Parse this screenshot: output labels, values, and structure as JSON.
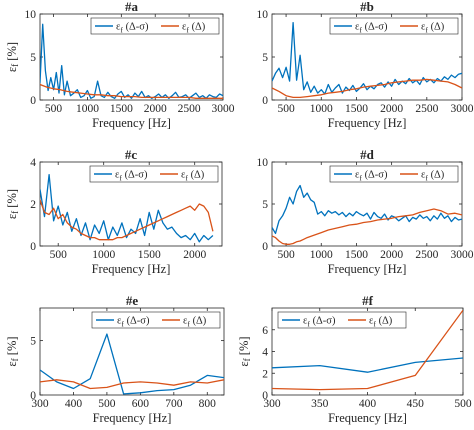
{
  "figure": {
    "series_colors": [
      "#0072BD",
      "#D95319"
    ]
  },
  "chart_data": [
    {
      "id": "a",
      "type": "line",
      "title": "#a",
      "xlabel": "Frequency [Hz]",
      "ylabel": "ε_f [%]",
      "xlim": [
        300,
        3000
      ],
      "ylim": [
        0,
        10
      ],
      "xticks": [
        500,
        1000,
        1500,
        2000,
        2500,
        3000
      ],
      "yticks": [
        0,
        5,
        10
      ],
      "legend": "top-right",
      "series": [
        {
          "name": "ε_f (Δ-σ)",
          "color": "#0072BD",
          "x": [
            300,
            340,
            380,
            420,
            460,
            500,
            540,
            580,
            620,
            660,
            700,
            750,
            800,
            850,
            900,
            950,
            1000,
            1050,
            1100,
            1150,
            1200,
            1250,
            1300,
            1350,
            1400,
            1450,
            1500,
            1550,
            1600,
            1650,
            1700,
            1750,
            1800,
            1850,
            1900,
            1950,
            2000,
            2050,
            2100,
            2150,
            2200,
            2250,
            2300,
            2350,
            2400,
            2450,
            2500,
            2550,
            2600,
            2650,
            2700,
            2750,
            2800,
            2850,
            2900,
            2950,
            3000
          ],
          "y": [
            2.0,
            8.8,
            3.4,
            1.1,
            2.6,
            1.2,
            3.2,
            0.8,
            4.0,
            0.6,
            2.2,
            0.5,
            0.8,
            1.2,
            0.3,
            0.5,
            1.1,
            0.2,
            0.4,
            2.2,
            0.5,
            0.3,
            0.9,
            0.4,
            0.2,
            0.7,
            1.0,
            0.3,
            0.6,
            0.2,
            0.8,
            0.4,
            1.0,
            0.3,
            0.5,
            0.2,
            0.4,
            0.7,
            0.3,
            0.6,
            0.2,
            0.5,
            0.9,
            0.3,
            0.4,
            0.6,
            0.2,
            0.5,
            0.8,
            0.3,
            0.5,
            0.2,
            0.6,
            0.4,
            0.3,
            0.7,
            0.5
          ]
        },
        {
          "name": "ε_f (Δ)",
          "color": "#D95319",
          "x": [
            300,
            400,
            500,
            600,
            700,
            800,
            900,
            1000,
            1100,
            1200,
            1300,
            1400,
            1500,
            1600,
            1700,
            1800,
            1900,
            2000,
            2100,
            2200,
            2300,
            2400,
            2500,
            2600,
            2700,
            2800,
            2900,
            3000
          ],
          "y": [
            1.8,
            1.5,
            1.3,
            1.2,
            1.0,
            0.9,
            0.8,
            0.7,
            0.6,
            0.6,
            0.5,
            0.5,
            0.4,
            0.4,
            0.4,
            0.3,
            0.3,
            0.3,
            0.3,
            0.3,
            0.3,
            0.3,
            0.3,
            0.2,
            0.2,
            0.2,
            0.2,
            0.2
          ]
        }
      ]
    },
    {
      "id": "b",
      "type": "line",
      "title": "#b",
      "xlabel": "Frequency [Hz]",
      "ylabel": "",
      "xlim": [
        300,
        3000
      ],
      "ylim": [
        0,
        10
      ],
      "xticks": [
        500,
        1000,
        1500,
        2000,
        2500,
        3000
      ],
      "yticks": [
        0,
        5,
        10
      ],
      "legend": "top-right",
      "series": [
        {
          "name": "ε_f (Δ-σ)",
          "color": "#0072BD",
          "x": [
            300,
            350,
            400,
            450,
            500,
            550,
            600,
            650,
            700,
            750,
            800,
            850,
            900,
            950,
            1000,
            1050,
            1100,
            1150,
            1200,
            1250,
            1300,
            1350,
            1400,
            1450,
            1500,
            1550,
            1600,
            1650,
            1700,
            1750,
            1800,
            1850,
            1900,
            1950,
            2000,
            2050,
            2100,
            2150,
            2200,
            2250,
            2300,
            2350,
            2400,
            2450,
            2500,
            2550,
            2600,
            2650,
            2700,
            2750,
            2800,
            2850,
            2900,
            2950,
            3000
          ],
          "y": [
            2.2,
            3.1,
            3.7,
            2.6,
            3.8,
            2.2,
            9.0,
            2.3,
            5.2,
            1.2,
            2.1,
            0.9,
            1.6,
            0.8,
            1.2,
            0.7,
            1.8,
            0.9,
            1.4,
            1.8,
            0.8,
            1.5,
            1.1,
            1.7,
            1.0,
            1.4,
            1.9,
            1.2,
            1.6,
            1.3,
            1.8,
            2.0,
            1.5,
            2.1,
            1.6,
            2.4,
            1.8,
            2.2,
            1.9,
            2.5,
            2.0,
            2.3,
            1.8,
            2.6,
            2.1,
            2.4,
            2.0,
            2.5,
            2.2,
            2.7,
            2.4,
            2.9,
            2.6,
            3.0,
            3.1
          ]
        },
        {
          "name": "ε_f (Δ)",
          "color": "#D95319",
          "x": [
            300,
            400,
            500,
            600,
            700,
            800,
            900,
            1000,
            1100,
            1200,
            1300,
            1400,
            1500,
            1600,
            1700,
            1800,
            1900,
            2000,
            2100,
            2200,
            2300,
            2400,
            2500,
            2600,
            2700,
            2800,
            2900,
            3000
          ],
          "y": [
            1.4,
            1.0,
            0.5,
            0.3,
            0.3,
            0.4,
            0.5,
            0.6,
            0.8,
            0.9,
            1.0,
            1.2,
            1.3,
            1.5,
            1.6,
            1.7,
            1.8,
            2.0,
            2.1,
            2.2,
            2.3,
            2.3,
            2.4,
            2.3,
            2.2,
            2.1,
            1.8,
            1.4
          ]
        }
      ]
    },
    {
      "id": "c",
      "type": "line",
      "title": "#c",
      "xlabel": "Frequency [Hz]",
      "ylabel": "ε_f [%]",
      "xlim": [
        300,
        2300
      ],
      "ylim": [
        0,
        4
      ],
      "xticks": [
        500,
        1000,
        1500,
        2000
      ],
      "yticks": [
        0,
        2,
        4
      ],
      "legend": "top-right",
      "series": [
        {
          "name": "ε_f (Δ-σ)",
          "color": "#0072BD",
          "x": [
            300,
            350,
            400,
            450,
            500,
            550,
            600,
            650,
            700,
            750,
            800,
            850,
            900,
            950,
            1000,
            1050,
            1100,
            1150,
            1200,
            1250,
            1300,
            1350,
            1400,
            1450,
            1500,
            1550,
            1600,
            1650,
            1700,
            1750,
            1800,
            1850,
            1900,
            1950,
            2000,
            2050,
            2100,
            2150,
            2200
          ],
          "y": [
            2.7,
            1.4,
            3.4,
            1.2,
            1.9,
            1.0,
            1.6,
            0.7,
            1.3,
            0.5,
            1.1,
            0.3,
            1.0,
            0.6,
            1.2,
            0.3,
            0.9,
            0.5,
            1.1,
            0.4,
            0.8,
            0.6,
            1.3,
            0.5,
            1.6,
            0.8,
            1.7,
            1.1,
            0.8,
            0.9,
            0.6,
            0.4,
            0.5,
            0.3,
            0.6,
            0.2,
            0.5,
            0.3,
            0.5
          ]
        },
        {
          "name": "ε_f (Δ)",
          "color": "#D95319",
          "x": [
            300,
            350,
            400,
            450,
            500,
            550,
            600,
            650,
            700,
            750,
            800,
            850,
            900,
            950,
            1000,
            1050,
            1100,
            1150,
            1200,
            1250,
            1300,
            1350,
            1400,
            1450,
            1500,
            1550,
            1600,
            1650,
            1700,
            1750,
            1800,
            1850,
            1900,
            1950,
            2000,
            2050,
            2100,
            2150,
            2200
          ],
          "y": [
            2.2,
            1.6,
            1.5,
            1.8,
            1.3,
            1.5,
            1.1,
            0.9,
            0.8,
            0.6,
            0.5,
            0.4,
            0.4,
            0.3,
            0.3,
            0.3,
            0.3,
            0.4,
            0.4,
            0.5,
            0.6,
            0.7,
            0.8,
            0.9,
            1.0,
            1.1,
            1.2,
            1.3,
            1.4,
            1.5,
            1.6,
            1.7,
            1.8,
            1.9,
            1.7,
            2.0,
            1.9,
            1.6,
            0.7
          ]
        }
      ]
    },
    {
      "id": "d",
      "type": "line",
      "title": "#d",
      "xlabel": "Frequency [Hz]",
      "ylabel": "",
      "xlim": [
        300,
        3000
      ],
      "ylim": [
        0,
        10
      ],
      "xticks": [
        500,
        1000,
        1500,
        2000,
        2500,
        3000
      ],
      "yticks": [
        0,
        5,
        10
      ],
      "legend": "top-right",
      "series": [
        {
          "name": "ε_f (Δ-σ)",
          "color": "#0072BD",
          "x": [
            300,
            350,
            400,
            450,
            500,
            550,
            600,
            650,
            700,
            750,
            800,
            850,
            900,
            950,
            1000,
            1050,
            1100,
            1150,
            1200,
            1250,
            1300,
            1350,
            1400,
            1450,
            1500,
            1550,
            1600,
            1650,
            1700,
            1750,
            1800,
            1850,
            1900,
            1950,
            2000,
            2050,
            2100,
            2150,
            2200,
            2250,
            2300,
            2350,
            2400,
            2450,
            2500,
            2550,
            2600,
            2650,
            2700,
            2750,
            2800,
            2850,
            2900,
            2950,
            3000
          ],
          "y": [
            2.2,
            1.5,
            3.0,
            3.6,
            4.5,
            5.8,
            5.0,
            6.5,
            7.2,
            5.8,
            6.3,
            5.5,
            5.2,
            3.8,
            4.1,
            3.6,
            4.2,
            3.9,
            4.1,
            3.7,
            4.0,
            3.5,
            3.9,
            3.6,
            4.1,
            3.8,
            3.6,
            3.9,
            3.2,
            4.0,
            3.5,
            3.3,
            3.8,
            3.1,
            3.6,
            3.4,
            3.0,
            3.3,
            3.6,
            2.9,
            3.4,
            3.2,
            3.7,
            3.3,
            3.5,
            3.0,
            3.6,
            3.2,
            3.9,
            3.3,
            3.6,
            2.9,
            3.4,
            3.1,
            3.2
          ]
        },
        {
          "name": "ε_f (Δ)",
          "color": "#D95319",
          "x": [
            300,
            350,
            400,
            450,
            500,
            550,
            600,
            650,
            700,
            750,
            800,
            900,
            1000,
            1100,
            1200,
            1300,
            1400,
            1500,
            1600,
            1700,
            1800,
            1900,
            2000,
            2100,
            2200,
            2300,
            2400,
            2500,
            2600,
            2700,
            2800,
            2900,
            3000
          ],
          "y": [
            1.2,
            1.0,
            0.6,
            0.3,
            0.2,
            0.2,
            0.3,
            0.5,
            0.6,
            0.8,
            1.0,
            1.3,
            1.6,
            1.9,
            2.1,
            2.3,
            2.5,
            2.6,
            2.8,
            2.9,
            3.1,
            3.2,
            3.3,
            3.5,
            3.6,
            3.7,
            4.0,
            4.2,
            4.4,
            4.2,
            3.8,
            3.9,
            3.7
          ]
        }
      ]
    },
    {
      "id": "e",
      "type": "line",
      "title": "#e",
      "xlabel": "Frequency [Hz]",
      "ylabel": "ε_f [%]",
      "xlim": [
        300,
        850
      ],
      "ylim": [
        0,
        8
      ],
      "xticks": [
        300,
        400,
        500,
        600,
        700,
        800
      ],
      "yticks": [
        0,
        5
      ],
      "legend": "top-right",
      "series": [
        {
          "name": "ε_f (Δ-σ)",
          "color": "#0072BD",
          "x": [
            300,
            350,
            400,
            450,
            500,
            550,
            600,
            650,
            700,
            750,
            800,
            850
          ],
          "y": [
            2.3,
            1.2,
            0.6,
            1.5,
            5.6,
            0.1,
            0.2,
            0.4,
            0.5,
            0.9,
            1.8,
            1.6
          ]
        },
        {
          "name": "ε_f (Δ)",
          "color": "#D95319",
          "x": [
            300,
            350,
            400,
            450,
            500,
            550,
            600,
            650,
            700,
            750,
            800,
            850
          ],
          "y": [
            1.2,
            1.4,
            1.2,
            0.6,
            0.7,
            1.1,
            1.2,
            1.1,
            0.9,
            1.2,
            1.1,
            1.4
          ]
        }
      ]
    },
    {
      "id": "f",
      "type": "line",
      "title": "#f",
      "xlabel": "Frequency [Hz]",
      "ylabel": "ε_f [%]",
      "xlim": [
        300,
        500
      ],
      "ylim": [
        0,
        8
      ],
      "xticks": [
        300,
        350,
        400,
        450,
        500
      ],
      "yticks": [
        0,
        2,
        4,
        6
      ],
      "legend": "top-left",
      "series": [
        {
          "name": "ε_f (Δ-σ)",
          "color": "#0072BD",
          "x": [
            300,
            350,
            400,
            450,
            500
          ],
          "y": [
            2.5,
            2.7,
            2.1,
            3.0,
            3.4
          ]
        },
        {
          "name": "ε_f (Δ)",
          "color": "#D95319",
          "x": [
            300,
            350,
            400,
            450,
            500
          ],
          "y": [
            0.6,
            0.5,
            0.6,
            1.8,
            7.8
          ]
        }
      ]
    }
  ]
}
